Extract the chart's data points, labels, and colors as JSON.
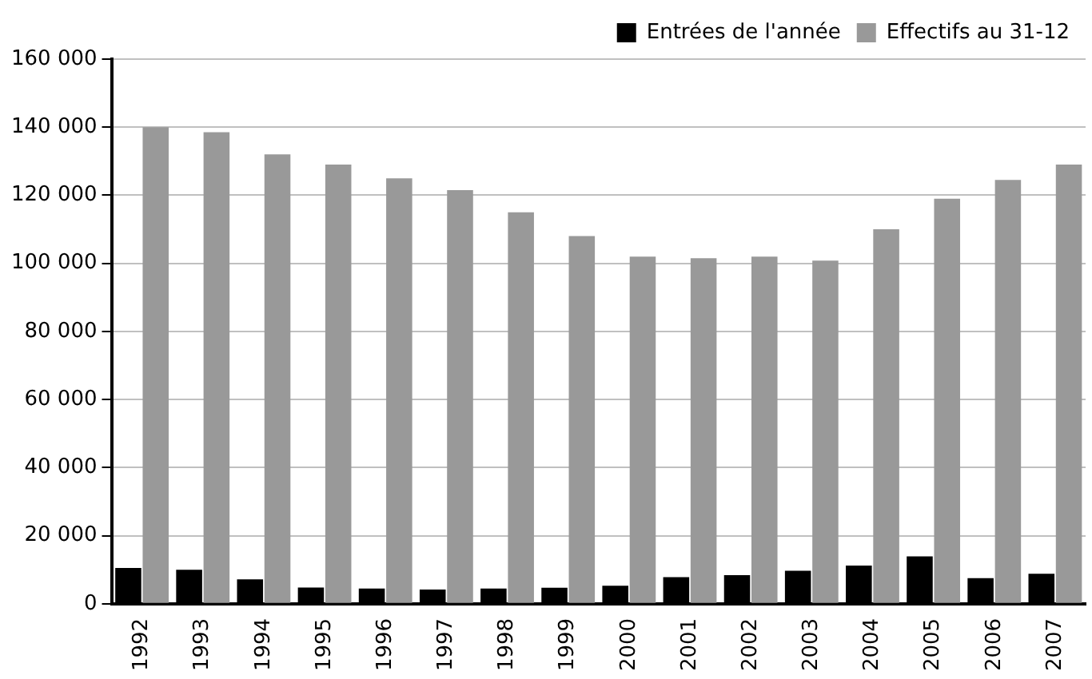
{
  "chart_data": {
    "type": "bar",
    "categories": [
      "1992",
      "1993",
      "1994",
      "1995",
      "1996",
      "1997",
      "1998",
      "1999",
      "2000",
      "2001",
      "2002",
      "2003",
      "2004",
      "2005",
      "2006",
      "2007"
    ],
    "series": [
      {
        "name": "Entrées de l'année",
        "color": "#000000",
        "values": [
          10500,
          10000,
          7200,
          4800,
          4500,
          4200,
          4500,
          4700,
          5300,
          7800,
          8400,
          9700,
          11200,
          13900,
          7500,
          8800
        ]
      },
      {
        "name": "Effectifs au 31-12",
        "color": "#999999",
        "values": [
          140000,
          138500,
          132000,
          129000,
          125000,
          121500,
          115000,
          108000,
          102000,
          101500,
          102000,
          100800,
          110000,
          119000,
          124500,
          129000
        ]
      }
    ],
    "ylim": [
      0,
      160000
    ],
    "yticks": [
      {
        "value": 0,
        "label": "0"
      },
      {
        "value": 20000,
        "label": "20 000"
      },
      {
        "value": 40000,
        "label": "40 000"
      },
      {
        "value": 60000,
        "label": "60 000"
      },
      {
        "value": 80000,
        "label": "80 000"
      },
      {
        "value": 100000,
        "label": "100 000"
      },
      {
        "value": 120000,
        "label": "120 000"
      },
      {
        "value": 140000,
        "label": "140 000"
      },
      {
        "value": 160000,
        "label": "160 000"
      }
    ],
    "grid": "y",
    "legend": "top right"
  }
}
